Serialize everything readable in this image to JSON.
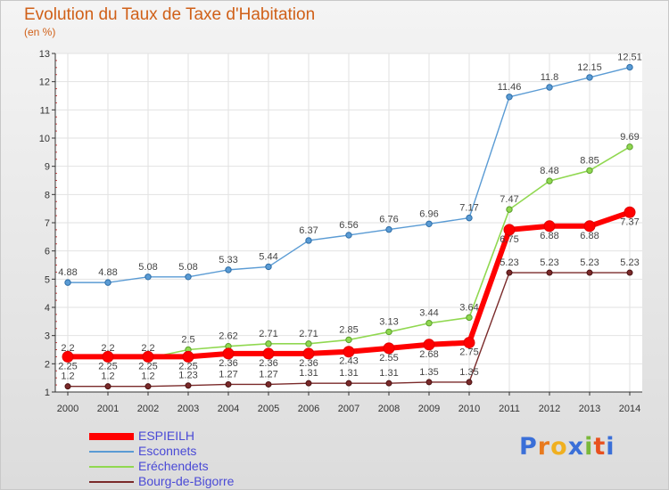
{
  "header": {
    "title": "Evolution du Taux de Taxe d'Habitation",
    "subtitle": "(en %)"
  },
  "logo": {
    "text": [
      "P",
      "r",
      "o",
      "x",
      "i",
      "t",
      "i"
    ],
    "colors": [
      "#3a6fd8",
      "#e87a1e",
      "#f0b020",
      "#3a6fd8",
      "#7ab83a",
      "#e8501e",
      "#3a6fd8"
    ]
  },
  "chart_data": {
    "type": "line",
    "x": [
      2000,
      2001,
      2002,
      2003,
      2004,
      2005,
      2006,
      2007,
      2008,
      2009,
      2010,
      2011,
      2012,
      2013,
      2014
    ],
    "ylim": [
      1,
      13
    ],
    "yticks": [
      1,
      2,
      3,
      4,
      5,
      6,
      7,
      8,
      9,
      10,
      11,
      12,
      13
    ],
    "grid": true,
    "legend_position": "bottom-left",
    "series": [
      {
        "name": "ESPIEILH",
        "color": "#ff0000",
        "values": [
          2.25,
          2.25,
          2.25,
          2.25,
          2.36,
          2.36,
          2.36,
          2.43,
          2.55,
          2.68,
          2.75,
          6.75,
          6.88,
          6.88,
          7.37
        ]
      },
      {
        "name": "Esconnets",
        "color": "#5a9bd4",
        "values": [
          4.88,
          4.88,
          5.08,
          5.08,
          5.33,
          5.44,
          6.37,
          6.56,
          6.76,
          6.96,
          7.17,
          11.46,
          11.8,
          12.15,
          12.51
        ]
      },
      {
        "name": "Eréchendets",
        "color": "#90d850",
        "values": [
          2.2,
          2.2,
          2.2,
          2.5,
          2.62,
          2.71,
          2.71,
          2.85,
          3.13,
          3.44,
          3.64,
          7.47,
          8.48,
          8.85,
          9.69
        ]
      },
      {
        "name": "Bourg-de-Bigorre",
        "color": "#7a2a2a",
        "values": [
          1.2,
          1.2,
          1.2,
          1.23,
          1.27,
          1.27,
          1.31,
          1.31,
          1.31,
          1.35,
          1.35,
          5.23,
          5.23,
          5.23,
          5.23
        ]
      }
    ]
  }
}
